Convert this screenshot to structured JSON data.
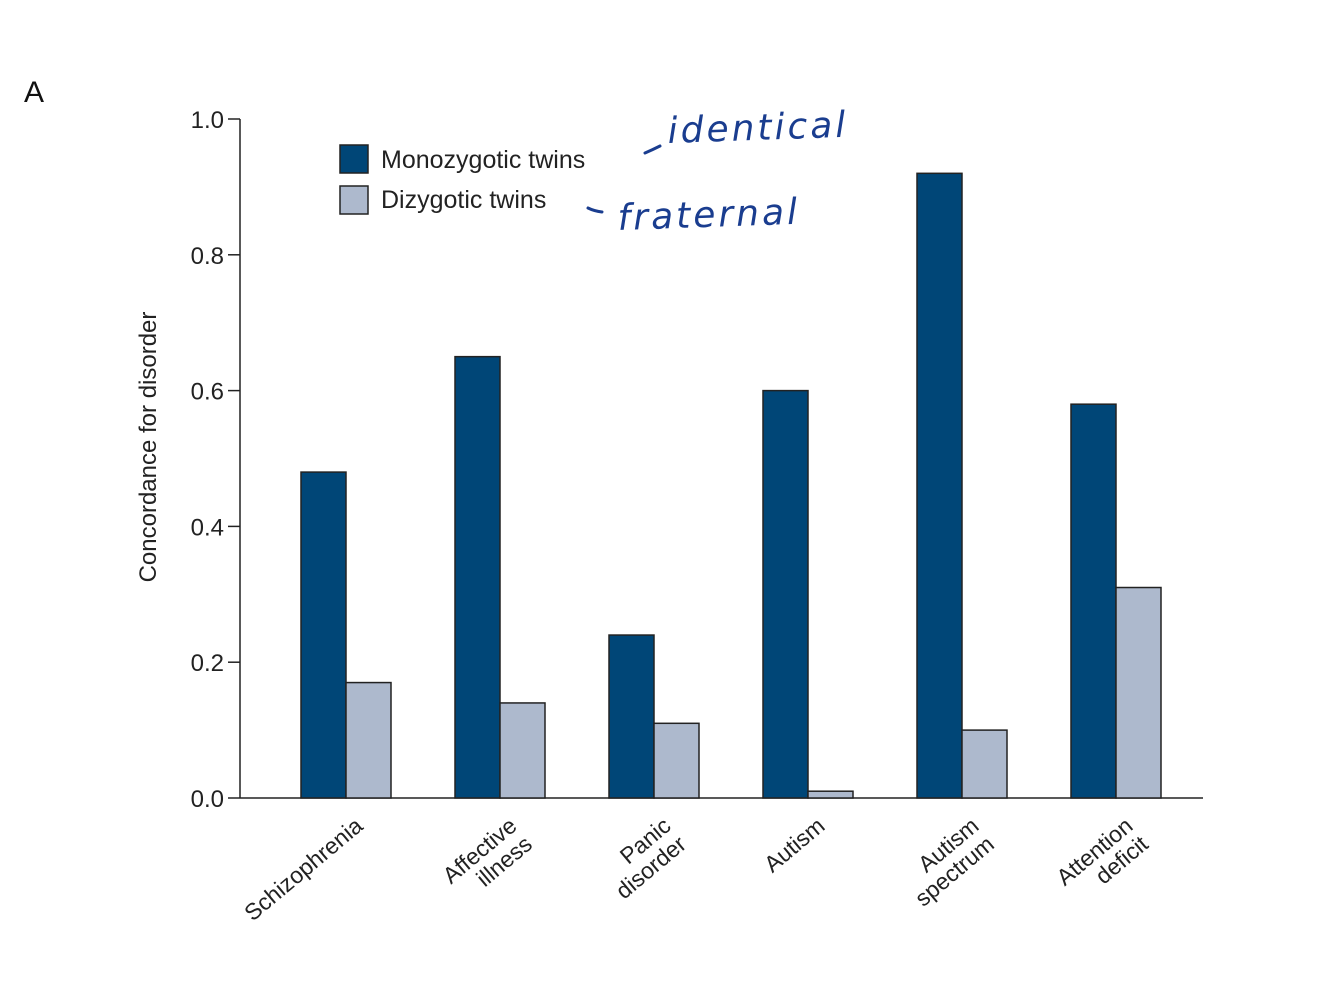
{
  "panel_letter": "A",
  "chart_data": {
    "type": "bar",
    "ylabel": "Concordance for disorder",
    "ylim": [
      0,
      1.0
    ],
    "yticks": [
      "0.0",
      "0.2",
      "0.4",
      "0.6",
      "0.8",
      "1.0"
    ],
    "categories": [
      [
        "Schizophrenia"
      ],
      [
        "Affective",
        "illness"
      ],
      [
        "Panic",
        "disorder"
      ],
      [
        "Autism"
      ],
      [
        "Autism",
        "spectrum"
      ],
      [
        "Attention",
        "deficit"
      ]
    ],
    "series": [
      {
        "name": "Monozygotic twins",
        "color": "#004677",
        "values": [
          0.48,
          0.65,
          0.24,
          0.6,
          0.92,
          0.58
        ]
      },
      {
        "name": "Dizygotic twins",
        "color": "#adb9cd",
        "values": [
          0.17,
          0.14,
          0.11,
          0.01,
          0.1,
          0.31
        ]
      }
    ],
    "legend_position": "top-left",
    "grid": false
  },
  "annotations": [
    {
      "text": "identical",
      "series_index": 0
    },
    {
      "text": "fraternal",
      "series_index": 1
    }
  ]
}
